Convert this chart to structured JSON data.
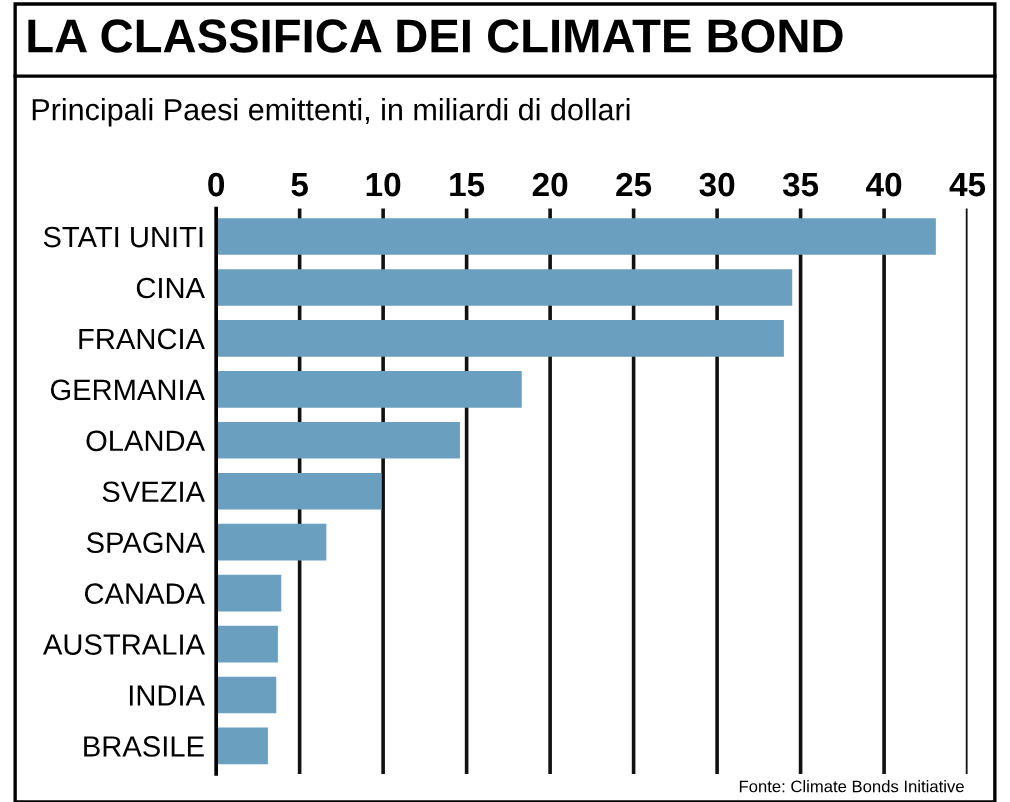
{
  "chart_data": {
    "type": "bar",
    "orientation": "horizontal",
    "title": "LA CLASSIFICA DEI CLIMATE BOND",
    "subtitle": "Principali Paesi emittenti, in miliardi di dollari",
    "categories": [
      "STATI UNITI",
      "CINA",
      "FRANCIA",
      "GERMANIA",
      "OLANDA",
      "SVEZIA",
      "SPAGNA",
      "CANADA",
      "AUSTRALIA",
      "INDIA",
      "BRASILE"
    ],
    "values": [
      43.1,
      34.5,
      34.0,
      18.3,
      14.6,
      9.9,
      6.6,
      3.9,
      3.7,
      3.6,
      3.1
    ],
    "color": "#6a9fbf",
    "xlim": [
      0,
      45
    ],
    "xticks": [
      0,
      5,
      10,
      15,
      20,
      25,
      30,
      35,
      40,
      45
    ],
    "grid": "x",
    "annotations": [
      "Fonte: Climate Bonds Initiative"
    ]
  }
}
